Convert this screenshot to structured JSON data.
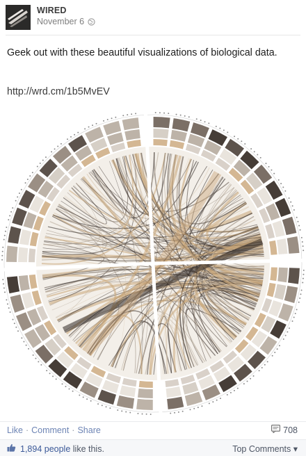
{
  "post": {
    "page_name": "WIRED",
    "date": "November 6",
    "text": "Geek out with these beautiful visualizations of biological data.",
    "link": "http://wrd.cm/1b5MvEV"
  },
  "actions": {
    "like": "Like",
    "comment": "Comment",
    "share": "Share",
    "separator": "·",
    "comment_count": "708"
  },
  "likes": {
    "count_text": "1,894 people",
    "suffix": " like this.",
    "top_comments": "Top Comments ▾"
  },
  "icons": {
    "avatar": "wired-logo-icon",
    "privacy": "globe-icon",
    "comments": "comment-icon",
    "likes": "thumbs-up-icon"
  },
  "colors": {
    "link": "#6d84b4",
    "tan": "#c9a578",
    "dark": "#3a302a"
  }
}
